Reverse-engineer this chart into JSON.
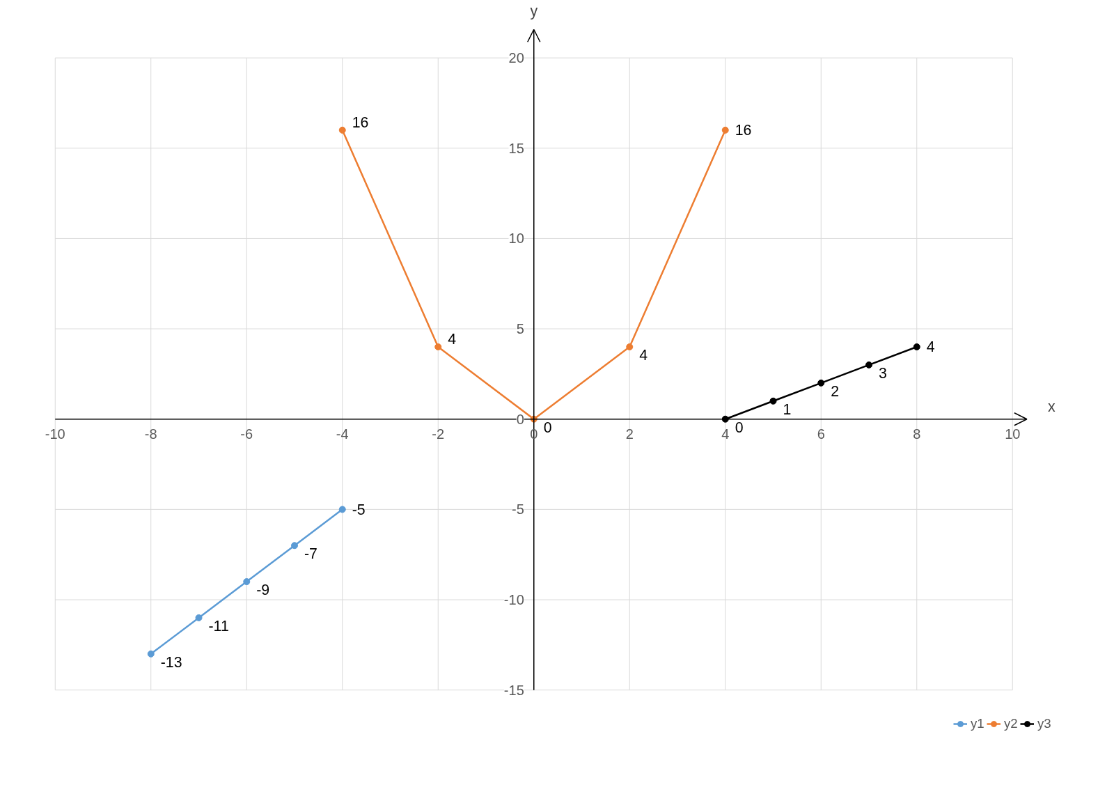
{
  "chart_data": {
    "type": "line",
    "xlabel": "x",
    "ylabel": "y",
    "xlim": [
      -10,
      10
    ],
    "xticks": [
      -10,
      -8,
      -6,
      -4,
      -2,
      0,
      2,
      4,
      6,
      8,
      10
    ],
    "ylim": [
      -15,
      20
    ],
    "yticks": [
      -15,
      -10,
      -5,
      0,
      5,
      10,
      15,
      20
    ],
    "grid": true,
    "legend": "bottom right",
    "marker": "circle",
    "data_labels": true,
    "series": [
      {
        "name": "y1",
        "color": "#5b9bd5",
        "x": [
          -8,
          -7,
          -6,
          -5,
          -4
        ],
        "values": [
          -13,
          -11,
          -9,
          -7,
          -5
        ]
      },
      {
        "name": "y2",
        "color": "#ed7d31",
        "x": [
          -4,
          -2,
          0,
          2,
          4
        ],
        "values": [
          16,
          4,
          0,
          4,
          16
        ]
      },
      {
        "name": "y3",
        "color": "#000000",
        "x": [
          4,
          5,
          6,
          7,
          8
        ],
        "values": [
          0,
          1,
          2,
          3,
          4
        ]
      }
    ]
  }
}
